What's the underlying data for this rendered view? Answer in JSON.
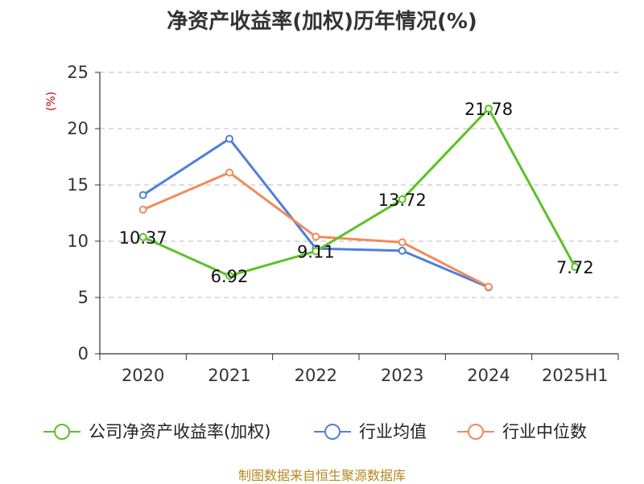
{
  "chart_data": {
    "type": "line",
    "title": "净资产收益率(加权)历年情况(%)",
    "ylabel": "(%)",
    "categories": [
      "2020",
      "2021",
      "2022",
      "2023",
      "2024",
      "2025H1"
    ],
    "ylim": [
      0,
      25
    ],
    "yticks": [
      0,
      5,
      10,
      15,
      20,
      25
    ],
    "grid": true,
    "legend_position": "bottom",
    "series": [
      {
        "name": "公司净资产收益率(加权)",
        "color": "#5cc127",
        "values": [
          10.37,
          6.92,
          9.11,
          13.72,
          21.78,
          7.72
        ],
        "show_labels": true
      },
      {
        "name": "行业均值",
        "color": "#4f7fd9",
        "values": [
          14.1,
          19.1,
          9.35,
          9.15,
          5.9,
          null
        ],
        "show_labels": false
      },
      {
        "name": "行业中位数",
        "color": "#f28a5b",
        "values": [
          12.8,
          16.1,
          10.4,
          9.9,
          5.95,
          null
        ],
        "show_labels": false
      }
    ],
    "data_labels": [
      "10.37",
      "6.92",
      "9.11",
      "13.72",
      "21.78",
      "7.72"
    ]
  },
  "footer": {
    "source": "制图数据来自恒生聚源数据库"
  }
}
